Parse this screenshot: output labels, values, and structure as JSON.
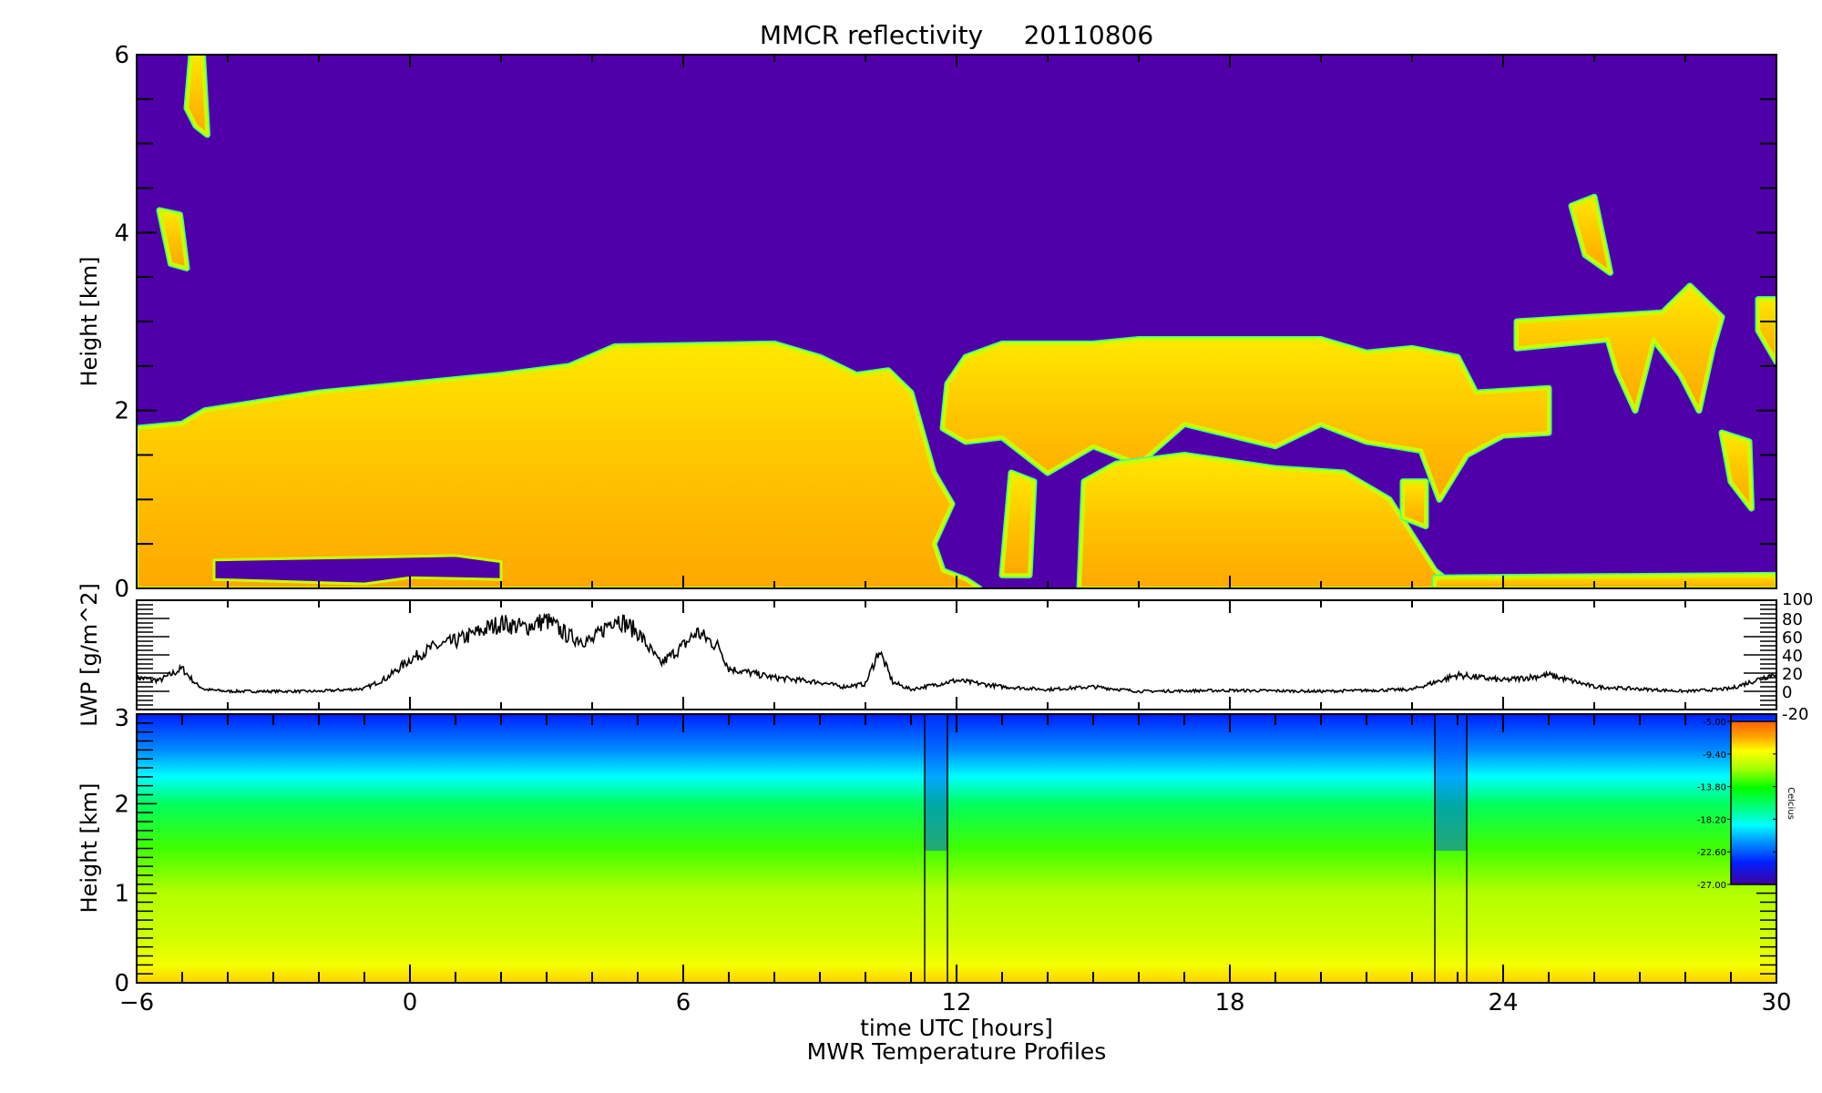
{
  "chart_data": [
    {
      "type": "heatmap",
      "title": "MMCR reflectivity     20110806",
      "ylabel": "Height [km]",
      "xlim": [
        -6,
        30
      ],
      "ylim": [
        0,
        6
      ],
      "yticks": [
        "0",
        "2",
        "4",
        "6"
      ],
      "background_color": "#5000a8",
      "colors": {
        "echo_edge": "#40ff90",
        "echo_rim": "#c8ff00",
        "echo_top": "#ffe800",
        "echo_core": "#ffa800",
        "clear": "#5000a8"
      },
      "echo_regions": [
        {
          "name": "main-layer",
          "points": [
            [
              -6,
              0
            ],
            [
              -6,
              1.8
            ],
            [
              -5,
              1.85
            ],
            [
              -4.5,
              2.0
            ],
            [
              -2,
              2.2
            ],
            [
              0,
              2.3
            ],
            [
              2,
              2.4
            ],
            [
              3.5,
              2.5
            ],
            [
              4.5,
              2.72
            ],
            [
              8,
              2.75
            ],
            [
              9,
              2.6
            ],
            [
              9.8,
              2.4
            ],
            [
              10.5,
              2.45
            ],
            [
              11,
              2.2
            ],
            [
              11.5,
              1.3
            ],
            [
              11.9,
              0.95
            ],
            [
              11.5,
              0.5
            ],
            [
              11.7,
              0.2
            ],
            [
              12.2,
              0.1
            ],
            [
              12.5,
              0
            ]
          ]
        },
        {
          "name": "upper-layer",
          "points": [
            [
              11.7,
              1.8
            ],
            [
              11.8,
              2.3
            ],
            [
              12.2,
              2.6
            ],
            [
              13,
              2.75
            ],
            [
              15,
              2.75
            ],
            [
              16,
              2.8
            ],
            [
              20,
              2.8
            ],
            [
              21,
              2.65
            ],
            [
              22,
              2.7
            ],
            [
              23,
              2.6
            ],
            [
              23.4,
              2.2
            ],
            [
              25,
              2.25
            ],
            [
              25,
              1.75
            ],
            [
              24,
              1.72
            ],
            [
              23.2,
              1.5
            ],
            [
              22.6,
              1.0
            ],
            [
              22.2,
              1.55
            ],
            [
              21,
              1.65
            ],
            [
              20,
              1.85
            ],
            [
              19,
              1.6
            ],
            [
              17,
              1.85
            ],
            [
              16,
              1.4
            ],
            [
              15,
              1.6
            ],
            [
              14,
              1.3
            ],
            [
              13,
              1.7
            ],
            [
              12.2,
              1.65
            ]
          ]
        },
        {
          "name": "lower-layer",
          "points": [
            [
              14.7,
              0
            ],
            [
              14.8,
              1.2
            ],
            [
              15.5,
              1.4
            ],
            [
              17,
              1.5
            ],
            [
              19,
              1.35
            ],
            [
              20.5,
              1.3
            ],
            [
              21.5,
              1.0
            ],
            [
              22.5,
              0.2
            ],
            [
              23,
              0
            ]
          ]
        },
        {
          "name": "column-13h",
          "points": [
            [
              13.0,
              0.15
            ],
            [
              13.2,
              1.3
            ],
            [
              13.7,
              1.2
            ],
            [
              13.6,
              0.15
            ]
          ]
        },
        {
          "name": "surface-layer",
          "points": [
            [
              22.5,
              0
            ],
            [
              22.5,
              0.12
            ],
            [
              30,
              0.15
            ],
            [
              30,
              0
            ]
          ]
        },
        {
          "name": "cirrus-upper-left",
          "points": [
            [
              -4.8,
              6
            ],
            [
              -4.55,
              6
            ],
            [
              -4.45,
              5.1
            ],
            [
              -4.7,
              5.2
            ],
            [
              -4.9,
              5.4
            ]
          ]
        },
        {
          "name": "cirrus-4km-left",
          "points": [
            [
              -5.5,
              4.25
            ],
            [
              -5.05,
              4.2
            ],
            [
              -4.9,
              3.6
            ],
            [
              -5.25,
              3.65
            ]
          ]
        },
        {
          "name": "cirrus-4km-right",
          "points": [
            [
              25.5,
              4.3
            ],
            [
              26.0,
              4.4
            ],
            [
              26.35,
              3.55
            ],
            [
              25.8,
              3.75
            ]
          ]
        },
        {
          "name": "layer-3km-right",
          "points": [
            [
              24.3,
              3.0
            ],
            [
              27.5,
              3.1
            ],
            [
              28.1,
              3.4
            ],
            [
              28.8,
              3.05
            ],
            [
              28.6,
              2.7
            ],
            [
              28.3,
              2.0
            ],
            [
              27.9,
              2.4
            ],
            [
              27.3,
              2.8
            ],
            [
              26.9,
              2.0
            ],
            [
              26.5,
              2.45
            ],
            [
              26.3,
              2.8
            ],
            [
              24.3,
              2.7
            ]
          ]
        },
        {
          "name": "layer-3km-edge",
          "points": [
            [
              29.6,
              3.25
            ],
            [
              30,
              3.25
            ],
            [
              30,
              2.55
            ],
            [
              29.6,
              2.9
            ]
          ]
        },
        {
          "name": "patch-29h",
          "points": [
            [
              28.8,
              1.75
            ],
            [
              29.4,
              1.65
            ],
            [
              29.45,
              0.9
            ],
            [
              29.0,
              1.2
            ]
          ]
        },
        {
          "name": "patch-21h",
          "points": [
            [
              21.8,
              1.2
            ],
            [
              22.3,
              1.2
            ],
            [
              22.3,
              0.7
            ],
            [
              21.8,
              0.8
            ]
          ]
        }
      ],
      "clear_regions": [
        {
          "name": "gap-below-main",
          "points": [
            [
              -4.3,
              0.1
            ],
            [
              -4.3,
              0.32
            ],
            [
              -1,
              0.35
            ],
            [
              1,
              0.37
            ],
            [
              2,
              0.3
            ],
            [
              2,
              0.1
            ],
            [
              0,
              0.12
            ],
            [
              -1,
              0.05
            ],
            [
              -3,
              0.08
            ]
          ]
        }
      ]
    },
    {
      "type": "line",
      "ylabel": "LWP [g/m^2]",
      "xlim": [
        -6,
        30
      ],
      "ylim": [
        -20,
        100
      ],
      "yticks_right": [
        "100",
        "80",
        "60",
        "40",
        "20",
        "0",
        "-20"
      ],
      "color": "#000000",
      "x": [
        -6,
        -5.5,
        -5,
        -4.7,
        -4.5,
        -4,
        -3,
        -2,
        -1,
        -0.5,
        0,
        0.5,
        1,
        1.5,
        2,
        2.5,
        3,
        3.5,
        4,
        4.5,
        5,
        5.5,
        6,
        6.3,
        6.8,
        7,
        8,
        9,
        9.5,
        10,
        10.3,
        10.6,
        11,
        12,
        13,
        14,
        15,
        16,
        18,
        20,
        22,
        23,
        24,
        25,
        26,
        28,
        29,
        30
      ],
      "y": [
        15,
        12,
        25,
        8,
        2,
        0,
        0,
        0,
        3,
        15,
        35,
        48,
        55,
        65,
        75,
        70,
        78,
        60,
        55,
        82,
        65,
        30,
        50,
        65,
        48,
        25,
        15,
        10,
        5,
        8,
        45,
        10,
        2,
        12,
        5,
        2,
        5,
        0,
        1,
        0,
        2,
        18,
        12,
        18,
        5,
        0,
        3,
        20
      ]
    },
    {
      "type": "heatmap",
      "ylabel": "Height [km]",
      "xlabel": "time UTC [hours]",
      "subtitle": "MWR Temperature Profiles",
      "xlim": [
        -6,
        30
      ],
      "ylim": [
        0,
        3
      ],
      "xticks": [
        "-6",
        "0",
        "6",
        "12",
        "18",
        "24",
        "30"
      ],
      "yticks": [
        "0",
        "1",
        "2",
        "3"
      ],
      "profile_heights": [
        0,
        0.2,
        0.5,
        1.0,
        1.5,
        2.0,
        2.3,
        2.6,
        3.0
      ],
      "profile_temps": [
        -8,
        -9.3,
        -10.2,
        -11,
        -13,
        -16,
        -19,
        -21.5,
        -24
      ],
      "missing_intervals": [
        [
          11.3,
          11.8
        ],
        [
          22.5,
          23.2
        ]
      ],
      "colorbar": {
        "label": "Celcius",
        "range": [
          -27,
          -5
        ],
        "tick_labels": [
          "-5.00",
          "-9.40",
          "-13.80",
          "-18.20",
          "-22.60",
          "-27.00"
        ],
        "colormap": [
          [
            -27,
            "#4000a0"
          ],
          [
            -24,
            "#0020ff"
          ],
          [
            -21,
            "#00a0ff"
          ],
          [
            -19,
            "#00ffff"
          ],
          [
            -17,
            "#00ff90"
          ],
          [
            -14,
            "#00ff00"
          ],
          [
            -11.5,
            "#a0ff00"
          ],
          [
            -9,
            "#ffff00"
          ],
          [
            -7,
            "#ffa000"
          ],
          [
            -5,
            "#ff6000"
          ]
        ]
      }
    }
  ]
}
